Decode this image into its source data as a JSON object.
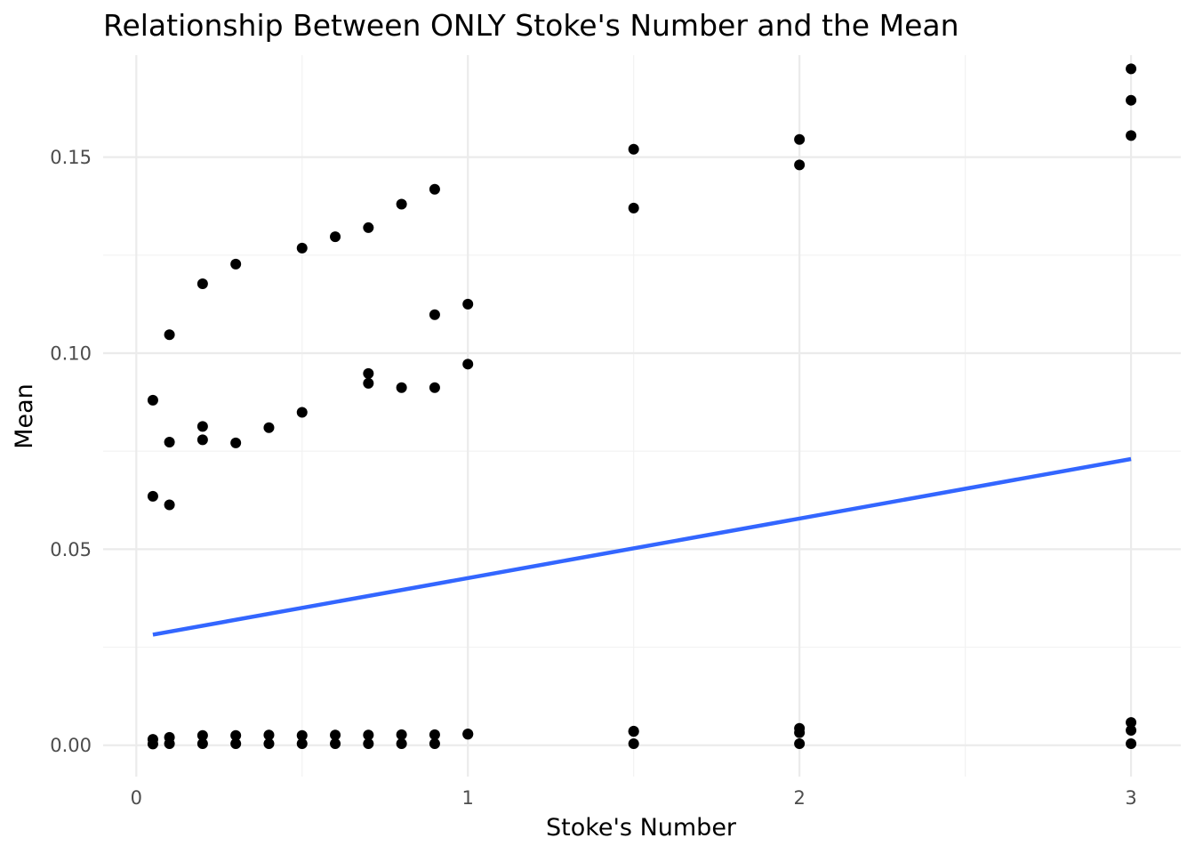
{
  "chart_data": {
    "type": "scatter",
    "title": "Relationship Between ONLY Stoke's Number and the Mean",
    "xlabel": "Stoke's Number",
    "ylabel": "Mean",
    "xlim": [
      -0.1,
      3.15
    ],
    "ylim": [
      -0.008,
      0.176
    ],
    "xticks": [
      0,
      1,
      2,
      3
    ],
    "xtick_labels": [
      "0",
      "1",
      "2",
      "3"
    ],
    "xminor": [
      0.5,
      1.5,
      2.5
    ],
    "yticks": [
      0.0,
      0.05,
      0.1,
      0.15
    ],
    "ytick_labels": [
      "0.00",
      "0.05",
      "0.10",
      "0.15"
    ],
    "yminor": [
      0.025,
      0.075,
      0.125
    ],
    "grid": true,
    "point_color": "#000000",
    "trend_color": "#3366ff",
    "points": [
      {
        "x": 0.05,
        "y": 0.088
      },
      {
        "x": 0.05,
        "y": 0.0635
      },
      {
        "x": 0.05,
        "y": 0.0015
      },
      {
        "x": 0.05,
        "y": 0.0003
      },
      {
        "x": 0.1,
        "y": 0.1047
      },
      {
        "x": 0.1,
        "y": 0.0773
      },
      {
        "x": 0.1,
        "y": 0.0613
      },
      {
        "x": 0.1,
        "y": 0.002
      },
      {
        "x": 0.1,
        "y": 0.0004
      },
      {
        "x": 0.2,
        "y": 0.1177
      },
      {
        "x": 0.2,
        "y": 0.0813
      },
      {
        "x": 0.2,
        "y": 0.0779
      },
      {
        "x": 0.2,
        "y": 0.0025
      },
      {
        "x": 0.2,
        "y": 0.0004
      },
      {
        "x": 0.3,
        "y": 0.1227
      },
      {
        "x": 0.3,
        "y": 0.0771
      },
      {
        "x": 0.3,
        "y": 0.0025
      },
      {
        "x": 0.3,
        "y": 0.0004
      },
      {
        "x": 0.4,
        "y": 0.081
      },
      {
        "x": 0.4,
        "y": 0.0026
      },
      {
        "x": 0.4,
        "y": 0.0004
      },
      {
        "x": 0.5,
        "y": 0.1268
      },
      {
        "x": 0.5,
        "y": 0.0849
      },
      {
        "x": 0.5,
        "y": 0.0025
      },
      {
        "x": 0.5,
        "y": 0.0004
      },
      {
        "x": 0.6,
        "y": 0.1297
      },
      {
        "x": 0.6,
        "y": 0.0026
      },
      {
        "x": 0.6,
        "y": 0.0004
      },
      {
        "x": 0.7,
        "y": 0.132
      },
      {
        "x": 0.7,
        "y": 0.0948
      },
      {
        "x": 0.7,
        "y": 0.0923
      },
      {
        "x": 0.7,
        "y": 0.0026
      },
      {
        "x": 0.7,
        "y": 0.0004
      },
      {
        "x": 0.8,
        "y": 0.138
      },
      {
        "x": 0.8,
        "y": 0.0912
      },
      {
        "x": 0.8,
        "y": 0.0027
      },
      {
        "x": 0.8,
        "y": 0.0004
      },
      {
        "x": 0.9,
        "y": 0.1418
      },
      {
        "x": 0.9,
        "y": 0.1098
      },
      {
        "x": 0.9,
        "y": 0.0912
      },
      {
        "x": 0.9,
        "y": 0.0027
      },
      {
        "x": 0.9,
        "y": 0.0004
      },
      {
        "x": 1.0,
        "y": 0.1125
      },
      {
        "x": 1.0,
        "y": 0.0972
      },
      {
        "x": 1.0,
        "y": 0.0029
      },
      {
        "x": 1.0,
        "y": 0.0028
      },
      {
        "x": 1.5,
        "y": 0.152
      },
      {
        "x": 1.5,
        "y": 0.137
      },
      {
        "x": 1.5,
        "y": 0.0036
      },
      {
        "x": 1.5,
        "y": 0.0035
      },
      {
        "x": 1.5,
        "y": 0.0004
      },
      {
        "x": 2.0,
        "y": 0.1545
      },
      {
        "x": 2.0,
        "y": 0.148
      },
      {
        "x": 2.0,
        "y": 0.0043
      },
      {
        "x": 2.0,
        "y": 0.0032
      },
      {
        "x": 2.0,
        "y": 0.0004
      },
      {
        "x": 3.0,
        "y": 0.1725
      },
      {
        "x": 3.0,
        "y": 0.1645
      },
      {
        "x": 3.0,
        "y": 0.1555
      },
      {
        "x": 3.0,
        "y": 0.0058
      },
      {
        "x": 3.0,
        "y": 0.0038
      },
      {
        "x": 3.0,
        "y": 0.0004
      }
    ],
    "trend_line": {
      "x": [
        0.05,
        3.0
      ],
      "y": [
        0.0282,
        0.073
      ]
    }
  }
}
